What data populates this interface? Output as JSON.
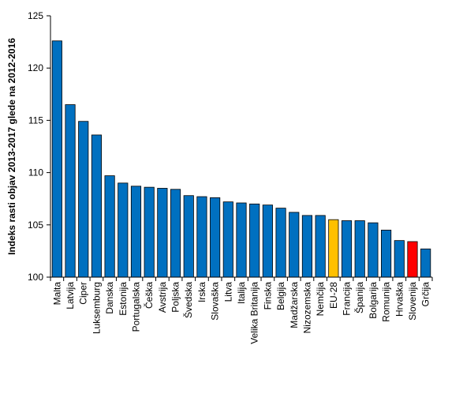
{
  "chart_data": {
    "type": "bar",
    "title": "",
    "xlabel": "",
    "ylabel": "Indeks rasti objav 2013-2017 glede na 2012-2016",
    "ylim": [
      100,
      125
    ],
    "yticks": [
      100,
      105,
      110,
      115,
      120,
      125
    ],
    "grid": false,
    "legend": "none",
    "categories": [
      "Malta",
      "Latvija",
      "Ciper",
      "Luksemburg",
      "Danska",
      "Estonija",
      "Portugalska",
      "Češka",
      "Avstrija",
      "Poljska",
      "Švedska",
      "Irska",
      "Slovaška",
      "Litva",
      "Italija",
      "Velika Britanija",
      "Finska",
      "Belgija",
      "Madžarska",
      "Nizozemska",
      "Nemčija",
      "EU-28",
      "Francija",
      "Španija",
      "Bolgarija",
      "Romunija",
      "Hrvaška",
      "Slovenija",
      "Grčija"
    ],
    "values": [
      122.6,
      116.5,
      114.9,
      113.6,
      109.7,
      109.0,
      108.7,
      108.6,
      108.5,
      108.4,
      107.8,
      107.7,
      107.6,
      107.2,
      107.1,
      107.0,
      106.9,
      106.6,
      106.2,
      105.9,
      105.9,
      105.5,
      105.4,
      105.4,
      105.2,
      104.5,
      103.5,
      103.4,
      102.7
    ],
    "colors": {
      "default": "#0070C0",
      "highlight_eu": "#FFC000",
      "highlight_slovenia": "#FF0000",
      "bar_stroke": "#000000"
    },
    "highlights": {
      "EU-28": "highlight_eu",
      "Slovenija": "highlight_slovenia"
    }
  }
}
